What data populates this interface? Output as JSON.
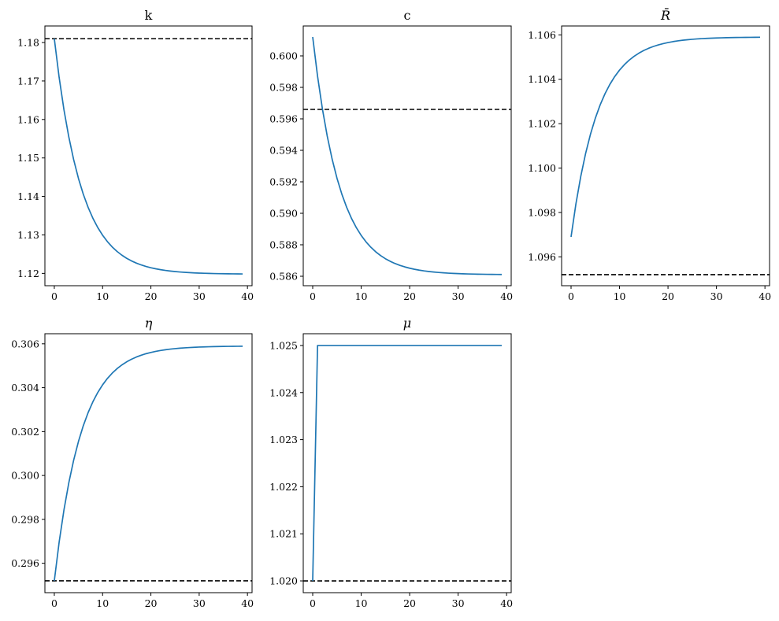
{
  "chart_data": [
    {
      "type": "line",
      "title": "k",
      "x_range": [
        0,
        39
      ],
      "xlim": [
        -1.95,
        40.95
      ],
      "ylim": [
        1.1168,
        1.1843
      ],
      "xticks": [
        0,
        10,
        20,
        30,
        40
      ],
      "xtick_labels": [
        "0",
        "10",
        "20",
        "30",
        "40"
      ],
      "yticks": [
        1.12,
        1.13,
        1.14,
        1.15,
        1.16,
        1.17,
        1.18
      ],
      "ytick_labels": [
        "1.12",
        "1.13",
        "1.14",
        "1.15",
        "1.16",
        "1.17",
        "1.18"
      ],
      "series": [
        {
          "path": "exp",
          "start": 1.181,
          "end": 1.1198,
          "rate": 0.18,
          "color": "#1f77b4",
          "style": "solid"
        }
      ],
      "reference_line": {
        "y": 1.181,
        "color": "#000000",
        "style": "dashed"
      },
      "grid": false
    },
    {
      "type": "line",
      "title": "c",
      "x_range": [
        0,
        39
      ],
      "xlim": [
        -1.95,
        40.95
      ],
      "ylim": [
        0.5854,
        0.6019
      ],
      "xticks": [
        0,
        10,
        20,
        30,
        40
      ],
      "xtick_labels": [
        "0",
        "10",
        "20",
        "30",
        "40"
      ],
      "yticks": [
        0.586,
        0.588,
        0.59,
        0.592,
        0.594,
        0.596,
        0.598,
        0.6
      ],
      "ytick_labels": [
        "0.586",
        "0.588",
        "0.590",
        "0.592",
        "0.594",
        "0.596",
        "0.598",
        "0.600"
      ],
      "series": [
        {
          "path": "exp",
          "start": 0.6012,
          "end": 0.5861,
          "rate": 0.18,
          "color": "#1f77b4",
          "style": "solid"
        }
      ],
      "reference_line": {
        "y": 0.5966,
        "color": "#000000",
        "style": "dashed"
      },
      "grid": false
    },
    {
      "type": "line",
      "title": "R̄",
      "title_math": true,
      "x_range": [
        0,
        39
      ],
      "xlim": [
        -1.95,
        40.95
      ],
      "ylim": [
        1.0947,
        1.1064
      ],
      "xticks": [
        0,
        10,
        20,
        30,
        40
      ],
      "xtick_labels": [
        "0",
        "10",
        "20",
        "30",
        "40"
      ],
      "yticks": [
        1.096,
        1.098,
        1.1,
        1.102,
        1.104,
        1.106
      ],
      "ytick_labels": [
        "1.096",
        "1.098",
        "1.100",
        "1.102",
        "1.104",
        "1.106"
      ],
      "series": [
        {
          "path": "exp",
          "start": 1.0969,
          "end": 1.1059,
          "rate": 0.18,
          "color": "#1f77b4",
          "style": "solid"
        }
      ],
      "reference_line": {
        "y": 1.0952,
        "color": "#000000",
        "style": "dashed"
      },
      "grid": false
    },
    {
      "type": "line",
      "title": "η",
      "title_math": true,
      "x_range": [
        0,
        39
      ],
      "xlim": [
        -1.95,
        40.95
      ],
      "ylim": [
        0.29466,
        0.30646
      ],
      "xticks": [
        0,
        10,
        20,
        30,
        40
      ],
      "xtick_labels": [
        "0",
        "10",
        "20",
        "30",
        "40"
      ],
      "yticks": [
        0.296,
        0.298,
        0.3,
        0.302,
        0.304,
        0.306
      ],
      "ytick_labels": [
        "0.296",
        "0.298",
        "0.300",
        "0.302",
        "0.304",
        "0.306"
      ],
      "series": [
        {
          "path": "exp",
          "start": 0.2952,
          "end": 0.3059,
          "rate": 0.18,
          "color": "#1f77b4",
          "style": "solid"
        }
      ],
      "reference_line": {
        "y": 0.2952,
        "color": "#000000",
        "style": "dashed"
      },
      "grid": false
    },
    {
      "type": "line",
      "title": "μ",
      "title_math": true,
      "x_range": [
        0,
        39
      ],
      "xlim": [
        -1.95,
        40.95
      ],
      "ylim": [
        1.01975,
        1.02525
      ],
      "xticks": [
        0,
        10,
        20,
        30,
        40
      ],
      "xtick_labels": [
        "0",
        "10",
        "20",
        "30",
        "40"
      ],
      "yticks": [
        1.02,
        1.021,
        1.022,
        1.023,
        1.024,
        1.025
      ],
      "ytick_labels": [
        "1.020",
        "1.021",
        "1.022",
        "1.023",
        "1.024",
        "1.025"
      ],
      "series": [
        {
          "path": "step",
          "start": 1.02,
          "end": 1.025,
          "color": "#1f77b4",
          "style": "solid"
        }
      ],
      "reference_line": {
        "y": 1.02,
        "color": "#000000",
        "style": "dashed"
      },
      "grid": false
    }
  ]
}
